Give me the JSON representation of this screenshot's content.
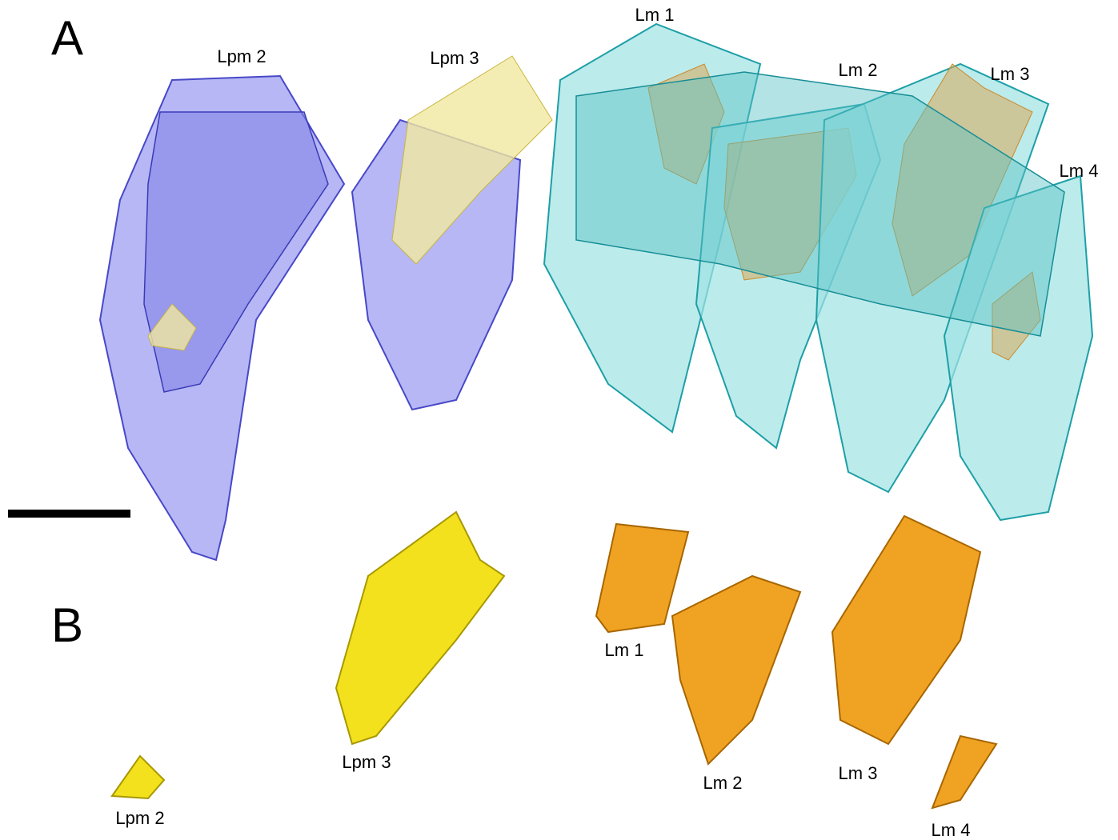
{
  "panels": [
    {
      "label": "A",
      "teeth": [
        "Lpm 2",
        "Lpm 3",
        "Lm 1",
        "Lm 2",
        "Lm 3",
        "Lm 4"
      ]
    },
    {
      "label": "B",
      "teeth": [
        "Lpm 2",
        "Lpm 3",
        "Lm 1",
        "Lm 2",
        "Lm 3",
        "Lm 4"
      ]
    }
  ]
}
